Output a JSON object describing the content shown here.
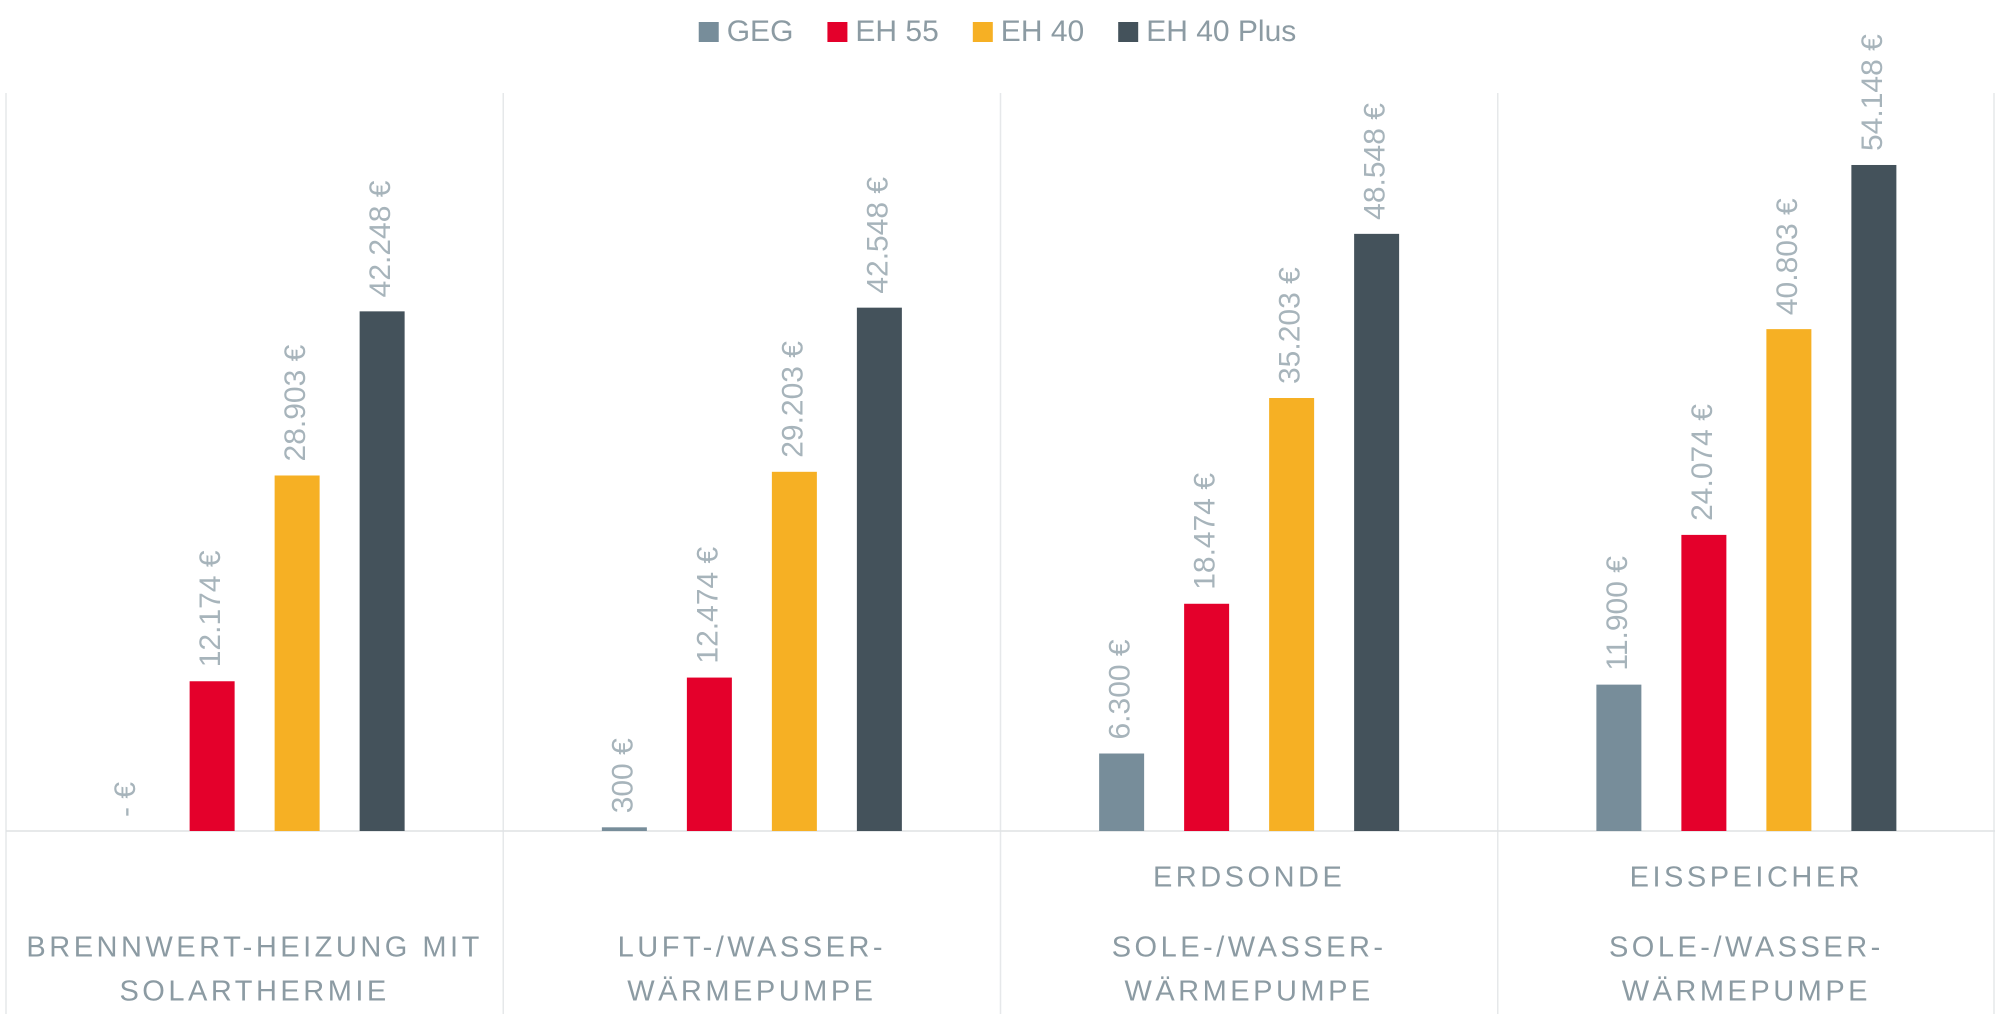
{
  "chart_data": {
    "type": "bar",
    "categories": [
      [
        "BRENNWERT-HEIZUNG MIT",
        "SOLARTHERMIE"
      ],
      [
        "LUFT-/WASSER-",
        "WÄRMEPUMPE"
      ],
      [
        "ERDSONDE",
        "SOLE-/WASSER-",
        "WÄRMEPUMPE"
      ],
      [
        "EISSPEICHER",
        "SOLE-/WASSER-",
        "WÄRMEPUMPE"
      ]
    ],
    "series": [
      {
        "name": "GEG",
        "color": "#778d9a",
        "values": [
          0,
          300,
          6300,
          11900
        ],
        "value_labels": [
          "- €",
          "300 €",
          "6.300 €",
          "11.900 €"
        ]
      },
      {
        "name": "EH 55",
        "color": "#e4002b",
        "values": [
          12174,
          12474,
          18474,
          24074
        ],
        "value_labels": [
          "12.174 €",
          "12.474 €",
          "18.474 €",
          "24.074 €"
        ]
      },
      {
        "name": "EH 40",
        "color": "#f6b024",
        "values": [
          28903,
          29203,
          35203,
          40803
        ],
        "value_labels": [
          "28.903 €",
          "29.203 €",
          "35.203 €",
          "40.803 €"
        ]
      },
      {
        "name": "EH 40 Plus",
        "color": "#44525b",
        "values": [
          42248,
          42548,
          48548,
          54148
        ],
        "value_labels": [
          "42.248 €",
          "42.548 €",
          "48.548 €",
          "54.148 €"
        ]
      }
    ],
    "ylim": [
      0,
      60000
    ],
    "legend": "top"
  }
}
